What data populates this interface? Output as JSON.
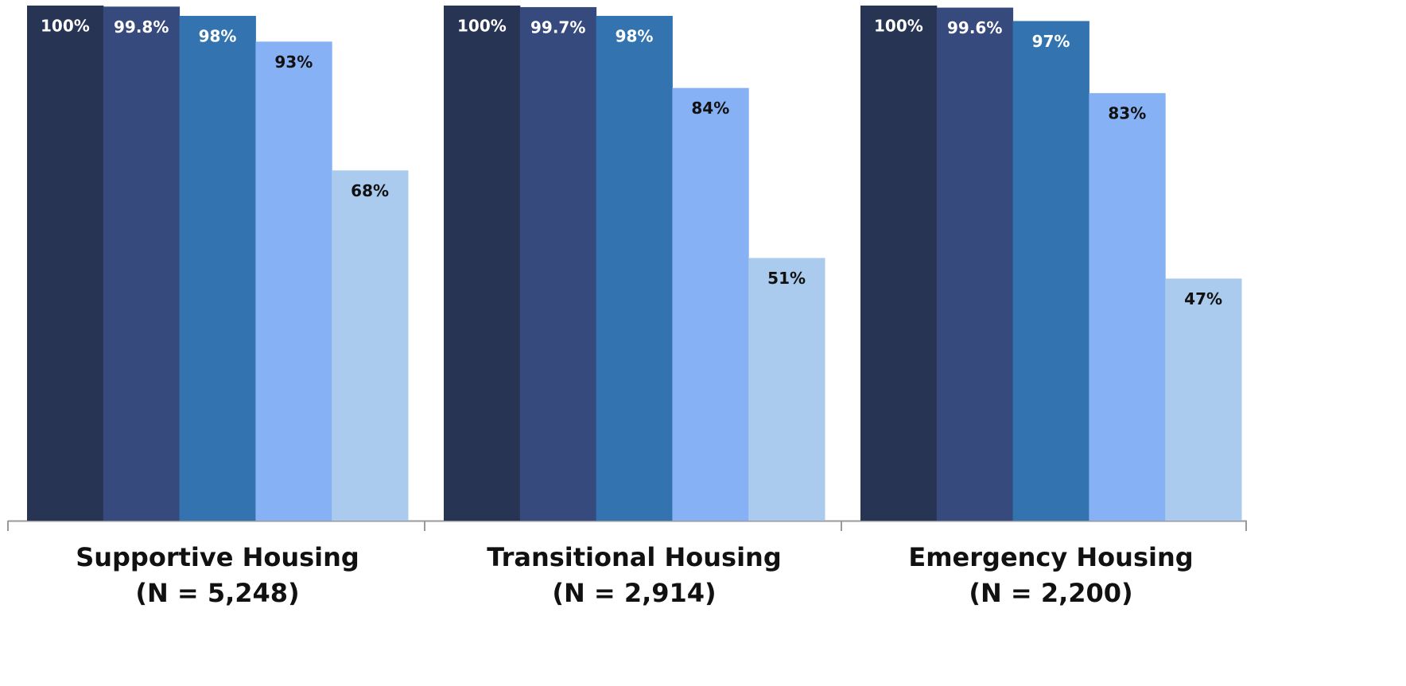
{
  "chart_data": {
    "type": "bar",
    "categories": [
      [
        "Supportive Housing",
        "(N = 5,248)"
      ],
      [
        "Transitional Housing",
        "(N = 2,914)"
      ],
      [
        "Emergency Housing",
        "(N = 2,200)"
      ]
    ],
    "series": [
      {
        "color": "#283454",
        "label_color": "#ffffff",
        "values": [
          100,
          100,
          100
        ],
        "value_labels": [
          "100%",
          "100%",
          "100%"
        ]
      },
      {
        "color": "#374a7e",
        "label_color": "#ffffff",
        "values": [
          99.8,
          99.7,
          99.6
        ],
        "value_labels": [
          "99.8%",
          "99.7%",
          "99.6%"
        ]
      },
      {
        "color": "#3374b0",
        "label_color": "#ffffff",
        "values": [
          98,
          98,
          97
        ],
        "value_labels": [
          "98%",
          "98%",
          "97%"
        ]
      },
      {
        "color": "#86b1f4",
        "label_color": "#111111",
        "values": [
          93,
          84,
          83
        ],
        "value_labels": [
          "93%",
          "84%",
          "83%"
        ]
      },
      {
        "color": "#aacbee",
        "label_color": "#111111",
        "values": [
          68,
          51,
          47
        ],
        "value_labels": [
          "68%",
          "51%",
          "47%"
        ]
      }
    ],
    "ylim": [
      0,
      100
    ]
  }
}
